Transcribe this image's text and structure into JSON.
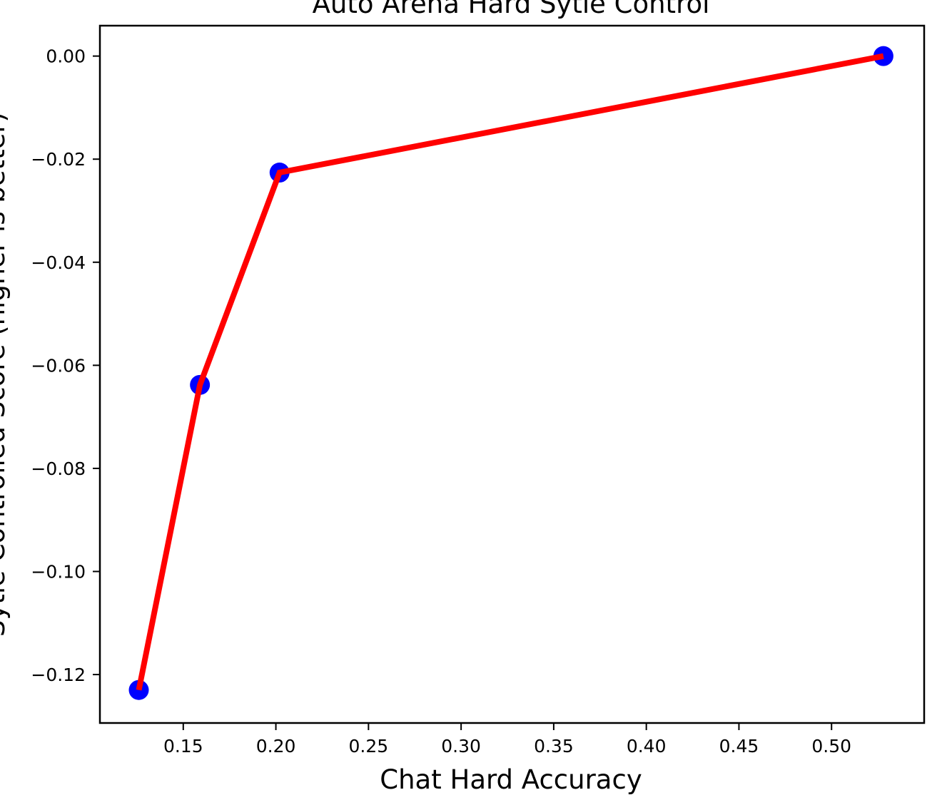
{
  "chart_data": {
    "type": "line",
    "title": "Auto Arena Hard Sytle Control",
    "xlabel": "Chat Hard Accuracy",
    "ylabel": "Sytle Controlled Score (higher is better)",
    "xlim": [
      0.105,
      0.55
    ],
    "ylim": [
      -0.1294,
      0.0059
    ],
    "xticks": [
      "0.15",
      "0.20",
      "0.25",
      "0.30",
      "0.35",
      "0.40",
      "0.45",
      "0.50"
    ],
    "yticks": [
      "0.00",
      "−0.02",
      "−0.04",
      "−0.06",
      "−0.08",
      "−0.10",
      "−0.12"
    ],
    "series": [
      {
        "x": [
          0.126,
          0.159,
          0.202,
          0.528
        ],
        "y": [
          -0.123,
          -0.0638,
          -0.0226,
          0.0
        ]
      }
    ],
    "line_color": "#ff0000",
    "marker_color": "#0000ff",
    "grid": false
  }
}
